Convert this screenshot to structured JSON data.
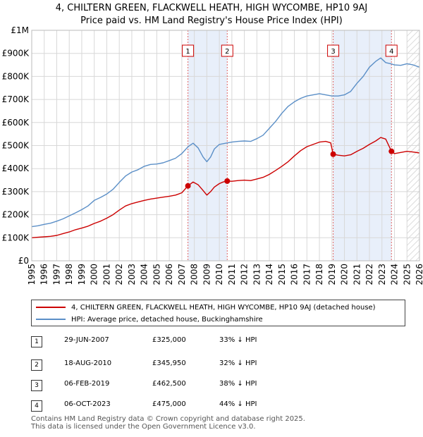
{
  "title_line1": "4, CHILTERN GREEN, FLACKWELL HEATH, HIGH WYCOMBE, HP10 9AJ",
  "title_line2": "Price paid vs. HM Land Registry's House Price Index (HPI)",
  "colors": {
    "property": "#cc0000",
    "hpi": "#5b8fc7",
    "shade": "#e8effa",
    "grid": "#d8d8d8"
  },
  "chart_data": {
    "type": "line",
    "title": "4, CHILTERN GREEN, FLACKWELL HEATH, HIGH WYCOMBE, HP10 9AJ - Price paid vs. HM Land Registry's House Price Index (HPI)",
    "xlabel": "",
    "ylabel": "",
    "xlim": [
      1995,
      2026
    ],
    "ylim": [
      0,
      1000000
    ],
    "y_ticks": [
      {
        "value": 0,
        "label": "£0"
      },
      {
        "value": 100000,
        "label": "£100K"
      },
      {
        "value": 200000,
        "label": "£200K"
      },
      {
        "value": 300000,
        "label": "£300K"
      },
      {
        "value": 400000,
        "label": "£400K"
      },
      {
        "value": 500000,
        "label": "£500K"
      },
      {
        "value": 600000,
        "label": "£600K"
      },
      {
        "value": 700000,
        "label": "£700K"
      },
      {
        "value": 800000,
        "label": "£800K"
      },
      {
        "value": 900000,
        "label": "£900K"
      },
      {
        "value": 1000000,
        "label": "£1M"
      }
    ],
    "x_ticks": [
      1995,
      1996,
      1997,
      1998,
      1999,
      2000,
      2001,
      2002,
      2003,
      2004,
      2005,
      2006,
      2007,
      2008,
      2009,
      2010,
      2011,
      2012,
      2013,
      2014,
      2015,
      2016,
      2017,
      2018,
      2019,
      2020,
      2021,
      2022,
      2023,
      2024,
      2025,
      2026
    ],
    "grid": true,
    "series": [
      {
        "name": "4, CHILTERN GREEN, FLACKWELL HEATH, HIGH WYCOMBE, HP10 9AJ (detached house)",
        "color": "#cc0000",
        "x": [
          1995.0,
          1995.5,
          1996.0,
          1996.5,
          1997.0,
          1997.5,
          1998.0,
          1998.5,
          1999.0,
          1999.5,
          2000.0,
          2000.5,
          2001.0,
          2001.5,
          2002.0,
          2002.5,
          2003.0,
          2003.5,
          2004.0,
          2004.5,
          2005.0,
          2005.5,
          2006.0,
          2006.5,
          2007.0,
          2007.49,
          2007.9,
          2008.3,
          2008.7,
          2009.0,
          2009.3,
          2009.6,
          2010.0,
          2010.3,
          2010.63,
          2011.0,
          2011.5,
          2012.0,
          2012.5,
          2013.0,
          2013.5,
          2014.0,
          2014.5,
          2015.0,
          2015.5,
          2016.0,
          2016.5,
          2017.0,
          2017.5,
          2018.0,
          2018.5,
          2018.9,
          2019.1,
          2019.5,
          2020.0,
          2020.5,
          2021.0,
          2021.5,
          2022.0,
          2022.5,
          2022.9,
          2023.3,
          2023.76,
          2024.0,
          2024.5,
          2025.0,
          2025.5,
          2026.0
        ],
        "values": [
          100000,
          102000,
          104000,
          106000,
          110000,
          118000,
          125000,
          135000,
          142000,
          150000,
          162000,
          172000,
          185000,
          200000,
          220000,
          238000,
          248000,
          255000,
          262000,
          268000,
          272000,
          276000,
          280000,
          285000,
          295000,
          325000,
          342000,
          330000,
          305000,
          285000,
          300000,
          320000,
          335000,
          342000,
          345950,
          345000,
          348000,
          350000,
          348000,
          355000,
          362000,
          375000,
          392000,
          410000,
          430000,
          455000,
          478000,
          495000,
          505000,
          515000,
          518000,
          512000,
          462500,
          458000,
          455000,
          460000,
          475000,
          488000,
          505000,
          520000,
          535000,
          528000,
          475000,
          465000,
          470000,
          475000,
          472000,
          468000
        ]
      },
      {
        "name": "HPI: Average price, detached house, Buckinghamshire",
        "color": "#5b8fc7",
        "x": [
          1995.0,
          1995.5,
          1996.0,
          1996.5,
          1997.0,
          1997.5,
          1998.0,
          1998.5,
          1999.0,
          1999.5,
          2000.0,
          2000.5,
          2001.0,
          2001.5,
          2002.0,
          2002.5,
          2003.0,
          2003.5,
          2004.0,
          2004.5,
          2005.0,
          2005.5,
          2006.0,
          2006.5,
          2007.0,
          2007.5,
          2007.9,
          2008.3,
          2008.7,
          2009.0,
          2009.3,
          2009.6,
          2010.0,
          2010.5,
          2011.0,
          2011.5,
          2012.0,
          2012.5,
          2013.0,
          2013.5,
          2014.0,
          2014.5,
          2015.0,
          2015.5,
          2016.0,
          2016.5,
          2017.0,
          2017.5,
          2018.0,
          2018.5,
          2019.0,
          2019.5,
          2020.0,
          2020.5,
          2021.0,
          2021.5,
          2022.0,
          2022.5,
          2022.9,
          2023.3,
          2023.7,
          2024.0,
          2024.5,
          2025.0,
          2025.5,
          2026.0
        ],
        "values": [
          148000,
          152000,
          158000,
          163000,
          172000,
          182000,
          195000,
          208000,
          222000,
          238000,
          262000,
          275000,
          290000,
          310000,
          340000,
          368000,
          385000,
          395000,
          410000,
          418000,
          420000,
          425000,
          435000,
          445000,
          465000,
          495000,
          510000,
          490000,
          450000,
          430000,
          450000,
          485000,
          505000,
          510000,
          515000,
          518000,
          520000,
          518000,
          530000,
          545000,
          575000,
          605000,
          640000,
          670000,
          690000,
          705000,
          715000,
          720000,
          725000,
          720000,
          715000,
          715000,
          720000,
          735000,
          770000,
          800000,
          840000,
          865000,
          880000,
          860000,
          855000,
          850000,
          848000,
          855000,
          850000,
          840000
        ]
      }
    ],
    "annotations": [
      {
        "label": "1",
        "x": 2007.49
      },
      {
        "label": "2",
        "x": 2010.63
      },
      {
        "label": "3",
        "x": 2019.1
      },
      {
        "label": "4",
        "x": 2023.76
      }
    ],
    "shaded_ranges": [
      [
        2007.49,
        2010.63
      ],
      [
        2019.1,
        2023.76
      ]
    ],
    "hatched_from": 2025.0,
    "legend_position": "bottom"
  },
  "legend": {
    "property_label": "4, CHILTERN GREEN, FLACKWELL HEATH, HIGH WYCOMBE, HP10 9AJ (detached house)",
    "hpi_label": "HPI: Average price, detached house, Buckinghamshire"
  },
  "transactions": [
    {
      "num": "1",
      "date": "29-JUN-2007",
      "price": "£325,000",
      "hpi": "33% ↓ HPI"
    },
    {
      "num": "2",
      "date": "18-AUG-2010",
      "price": "£345,950",
      "hpi": "32% ↓ HPI"
    },
    {
      "num": "3",
      "date": "06-FEB-2019",
      "price": "£462,500",
      "hpi": "38% ↓ HPI"
    },
    {
      "num": "4",
      "date": "06-OCT-2023",
      "price": "£475,000",
      "hpi": "44% ↓ HPI"
    }
  ],
  "footer": {
    "line1": "Contains HM Land Registry data © Crown copyright and database right 2025.",
    "line2": "This data is licensed under the Open Government Licence v3.0."
  }
}
